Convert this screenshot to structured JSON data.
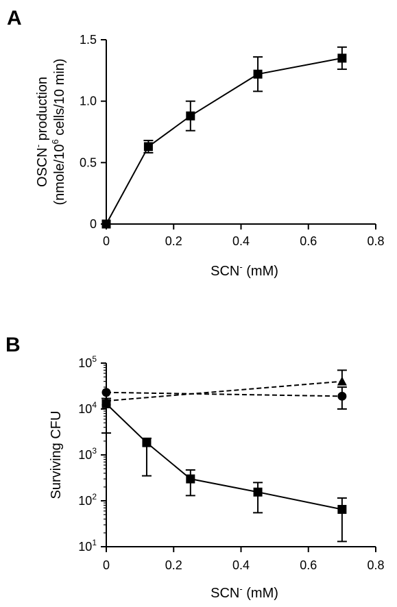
{
  "colors": {
    "ink": "#000000",
    "background": "#ffffff"
  },
  "chart_data": [
    {
      "panel_label": "A",
      "type": "line",
      "xlabel": {
        "main": "SCN",
        "sup": "-",
        "rest": " (mM)"
      },
      "ylabel": {
        "line1": {
          "main": "OSCN",
          "sup": "-",
          "rest": " production"
        },
        "line2": {
          "pre": "(nmole/10",
          "sup": "6",
          "post": " cells/10 min)"
        }
      },
      "xlim": [
        0,
        0.8
      ],
      "ylim": [
        0,
        1.5
      ],
      "x_ticks": [
        0,
        0.2,
        0.4,
        0.6,
        0.8
      ],
      "x_tick_labels": [
        "0",
        "0.2",
        "0.4",
        "0.6",
        "0.8"
      ],
      "y_ticks": [
        0,
        0.5,
        1.0,
        1.5
      ],
      "y_tick_labels": [
        "0",
        "0.5",
        "1.0",
        "1.5"
      ],
      "grid": false,
      "series": [
        {
          "marker": "square",
          "line": "solid",
          "x": [
            0,
            0.125,
            0.25,
            0.45,
            0.7
          ],
          "y": [
            0.0,
            0.63,
            0.88,
            1.22,
            1.35
          ],
          "yerr": [
            0.0,
            0.05,
            0.12,
            0.14,
            0.09
          ]
        }
      ]
    },
    {
      "panel_label": "B",
      "type": "line",
      "yscale": "log",
      "xlabel": {
        "main": "SCN",
        "sup": "-",
        "rest": " (mM)"
      },
      "ylabel": {
        "text": "Surviving CFU"
      },
      "xlim": [
        0,
        0.8
      ],
      "ylim": [
        10,
        100000
      ],
      "x_ticks": [
        0,
        0.2,
        0.4,
        0.6,
        0.8
      ],
      "x_tick_labels": [
        "0",
        "0.2",
        "0.4",
        "0.6",
        "0.8"
      ],
      "y_ticks": [
        10,
        100,
        1000,
        10000,
        100000
      ],
      "y_tick_labels": [
        {
          "base": "10",
          "exp": "1"
        },
        {
          "base": "10",
          "exp": "2"
        },
        {
          "base": "10",
          "exp": "3"
        },
        {
          "base": "10",
          "exp": "4"
        },
        {
          "base": "10",
          "exp": "5"
        }
      ],
      "grid": false,
      "series": [
        {
          "marker": "square",
          "line": "solid",
          "x": [
            0,
            0.12,
            0.25,
            0.45,
            0.7
          ],
          "y": [
            13000,
            1850,
            300,
            155,
            65
          ],
          "err_lo": [
            3000,
            350,
            130,
            55,
            13
          ],
          "err_hi": [
            17000,
            2300,
            470,
            250,
            115
          ]
        },
        {
          "marker": "circle",
          "line": "dashed",
          "x": [
            0,
            0.7
          ],
          "y": [
            23000,
            19000
          ],
          "err_lo": [
            23000,
            10000
          ],
          "err_hi": [
            23000,
            30000
          ]
        },
        {
          "marker": "triangle",
          "line": "dashed",
          "x": [
            0,
            0.7
          ],
          "y": [
            15000,
            40000
          ],
          "err_lo": [
            15000,
            40000
          ],
          "err_hi": [
            15000,
            70000
          ]
        }
      ]
    }
  ]
}
